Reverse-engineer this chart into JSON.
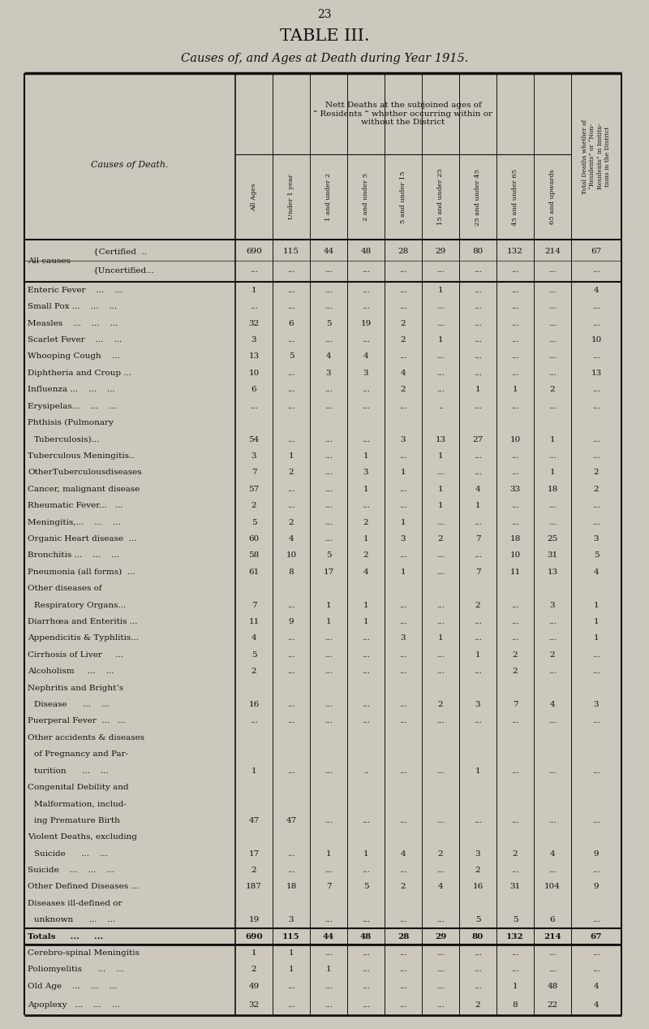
{
  "page_number": "23",
  "title": "TABLE III.",
  "subtitle": "Causes of, and Ages at Death during Year 1915.",
  "nett_header": "Nett Deaths at the subjoined ages of\n“ Residents ” whether occurring within or\nwithout the District",
  "last_col_header": "Total Deaths whether of\n“Residents” or “Non-\nResidents” in Institu-\ntions in the District",
  "col_headers": [
    "All Ages",
    "Under 1 year",
    "1 and under 2",
    "2 and under 5",
    "5 and under 15",
    "15 and under 25",
    "25 and under 45",
    "45 and under 65",
    "65 and upwards"
  ],
  "rows": [
    {
      "label": "All causes",
      "sub1": "Certified  ..",
      "sub2": "Uncertified...",
      "vals": [
        "690",
        "115",
        "44",
        "48",
        "28",
        "29",
        "80",
        "132",
        "214",
        "67"
      ],
      "vals2": [
        "...",
        "...",
        "...",
        "...",
        "...",
        "...",
        "...",
        "...",
        "...",
        "..."
      ],
      "type": "allcauses"
    },
    {
      "label": "Enteric Fever    ...    ...",
      "vals": [
        "1",
        "...",
        "...",
        "...",
        "...",
        "1",
        "...",
        "...",
        "...",
        "4"
      ]
    },
    {
      "label": "Small Pox ...    ...    ...",
      "vals": [
        "...",
        "...",
        "...",
        "...",
        "...",
        "...",
        "...",
        "...",
        "...",
        "..."
      ]
    },
    {
      "label": "Measles    ...    ...    ...",
      "vals": [
        "32",
        "6",
        "5",
        "19",
        "2",
        "...",
        "...",
        "...",
        "...",
        "..."
      ]
    },
    {
      "label": "Scarlet Fever    ...    ...",
      "vals": [
        "3",
        "...",
        "...",
        "...",
        "2",
        "1",
        "...",
        "...",
        "...",
        "10"
      ]
    },
    {
      "label": "Whooping Cough    ...",
      "vals": [
        "13",
        "5",
        "4",
        "4",
        "...",
        "...",
        "...",
        "...",
        "...",
        "..."
      ]
    },
    {
      "label": "Diphtheria and Croup ...",
      "vals": [
        "10",
        "...",
        "3",
        "3",
        "4",
        "...",
        "...",
        "...",
        "...",
        "13"
      ]
    },
    {
      "label": "Influenza ...    ...    ...",
      "vals": [
        "6",
        "...",
        "...",
        "...",
        "2",
        "...",
        "1",
        "1",
        "2",
        "..."
      ]
    },
    {
      "label": "Erysipelas...    ...    ...",
      "vals": [
        "...",
        "...",
        "...",
        "...",
        "...",
        "..",
        "...",
        "...",
        "...",
        "..."
      ]
    },
    {
      "label": "Phthisis (Pulmonary\n        Tuberculosis)...",
      "vals": [
        "54",
        "...",
        "...",
        "...",
        "3",
        "13",
        "27",
        "10",
        "1",
        "..."
      ],
      "multiline": true
    },
    {
      "label": "Tuberculous Meningitis..",
      "vals": [
        "3",
        "1",
        "...",
        "1",
        "...",
        "1",
        "...",
        "...",
        "...",
        "..."
      ]
    },
    {
      "label": "OtherTuberculousdiseases",
      "vals": [
        "7",
        "2",
        "...",
        "3",
        "1",
        "...",
        "...",
        "...",
        "1",
        "2"
      ]
    },
    {
      "label": "Cancer, malignant disease",
      "vals": [
        "57",
        "...",
        "...",
        "1",
        "...",
        "1",
        "4",
        "33",
        "18",
        "2"
      ]
    },
    {
      "label": "Rheumatic Fever...   ...",
      "vals": [
        "2",
        "...",
        "...",
        "...",
        "...",
        "1",
        "1",
        "...",
        "...",
        "..."
      ]
    },
    {
      "label": "Meningitis,...    ...    ...",
      "vals": [
        "5",
        "2",
        "...",
        "2",
        "1",
        "...",
        "...",
        "...",
        "...",
        "..."
      ]
    },
    {
      "label": "Organic Heart disease  ...",
      "vals": [
        "60",
        "4",
        "...",
        "1",
        "3",
        "2",
        "7",
        "18",
        "25",
        "3"
      ]
    },
    {
      "label": "Bronchitis ...    ...    ...",
      "vals": [
        "58",
        "10",
        "5",
        "2",
        "...",
        "...",
        "...",
        "10",
        "31",
        "5"
      ]
    },
    {
      "label": "Pneumonia (all forms)  ...",
      "vals": [
        "61",
        "8",
        "17",
        "4",
        "1",
        "...",
        "7",
        "11",
        "13",
        "4"
      ]
    },
    {
      "label": "Other diseases of\n    Respiratory Organs...",
      "vals": [
        "7",
        "...",
        "1",
        "1",
        "...",
        "...",
        "2",
        "...",
        "3",
        "1"
      ],
      "multiline": true
    },
    {
      "label": "Diarrhœa and Enteritis ...",
      "vals": [
        "11",
        "9",
        "1",
        "1",
        "...",
        "...",
        "...",
        "...",
        "...",
        "1"
      ]
    },
    {
      "label": "Appendicitis & Typhlitis...",
      "vals": [
        "4",
        "...",
        "...",
        "...",
        "3",
        "1",
        "...",
        "...",
        "...",
        "1"
      ]
    },
    {
      "label": "Cirrhosis of Liver     ...",
      "vals": [
        "5",
        "...",
        "...",
        "...",
        "...",
        "...",
        "1",
        "2",
        "2",
        "..."
      ]
    },
    {
      "label": "Alcoholism     ...    ...",
      "vals": [
        "2",
        "...",
        "...",
        "...",
        "...",
        "...",
        "...",
        "2",
        "...",
        "..."
      ]
    },
    {
      "label": "Nephritis and Bright’s\n    Disease      ...    ...",
      "vals": [
        "16",
        "...",
        "...",
        "...",
        "...",
        "2",
        "3",
        "7",
        "4",
        "3"
      ],
      "multiline": true
    },
    {
      "label": "Puerperal Fever  ...   ...",
      "vals": [
        "...",
        "...",
        "...",
        "...",
        "...",
        "...",
        "...",
        "...",
        "...",
        "..."
      ]
    },
    {
      "label": "Other accidents & diseases\n    of Pregnancy and Par-\n    turition      ...    ...",
      "vals": [
        "1",
        "...",
        "...",
        "..",
        "...",
        "...",
        "1",
        "...",
        "...",
        "..."
      ],
      "multiline": true,
      "nlines": 3
    },
    {
      "label": "Congenital Debility and\n    Malformation, includ-\n    ing Premature Birth",
      "vals": [
        "47",
        "47",
        "...",
        "...",
        "...",
        "...",
        "...",
        "...",
        "...",
        "..."
      ],
      "multiline": true,
      "nlines": 3
    },
    {
      "label": "Violent Deaths, excluding\n    Suicide      ...    ...",
      "vals": [
        "17",
        "...",
        "1",
        "1",
        "4",
        "2",
        "3",
        "2",
        "4",
        "9"
      ],
      "multiline": true
    },
    {
      "label": "Suicide    ...    ...    ...",
      "vals": [
        "2",
        "...",
        "...",
        "...",
        "...",
        "...",
        "2",
        "...",
        "...",
        "..."
      ]
    },
    {
      "label": "Other Defined Diseases ...",
      "vals": [
        "187",
        "18",
        "7",
        "5",
        "2",
        "4",
        "16",
        "31",
        "104",
        "9"
      ]
    },
    {
      "label": "Diseases ill-defined or\n    unknown      ...    ...",
      "vals": [
        "19",
        "3",
        "...",
        "...",
        "...",
        "...",
        "5",
        "5",
        "6",
        "..."
      ],
      "multiline": true
    },
    {
      "label": "Totals     ...     ...",
      "vals": [
        "690",
        "115",
        "44",
        "48",
        "28",
        "29",
        "80",
        "132",
        "214",
        "67"
      ],
      "type": "totals"
    },
    {
      "label": "Cerebro-spinal Meningitis",
      "vals": [
        "1",
        "1",
        "...",
        "...",
        "...",
        "...",
        "...",
        "...",
        "...",
        "..."
      ],
      "type": "footer"
    },
    {
      "label": "Poliomyelitis      ...    ...",
      "vals": [
        "2",
        "1",
        "1",
        "...",
        "...",
        "...",
        "...",
        "...",
        "...",
        "..."
      ],
      "type": "footer"
    },
    {
      "label": "Old Age    ...    ...    ...",
      "vals": [
        "49",
        "...",
        "...",
        "...",
        "...",
        "...",
        "...",
        "1",
        "48",
        "4"
      ],
      "type": "footer"
    },
    {
      "label": "Apoplexy   ...    ...    ...",
      "vals": [
        "32",
        "...",
        "...",
        "...",
        "...",
        "...",
        "2",
        "8",
        "22",
        "4"
      ],
      "type": "footer"
    }
  ],
  "bg_color": "#cdc8be",
  "text_color": "#111111",
  "line_color": "#111111"
}
